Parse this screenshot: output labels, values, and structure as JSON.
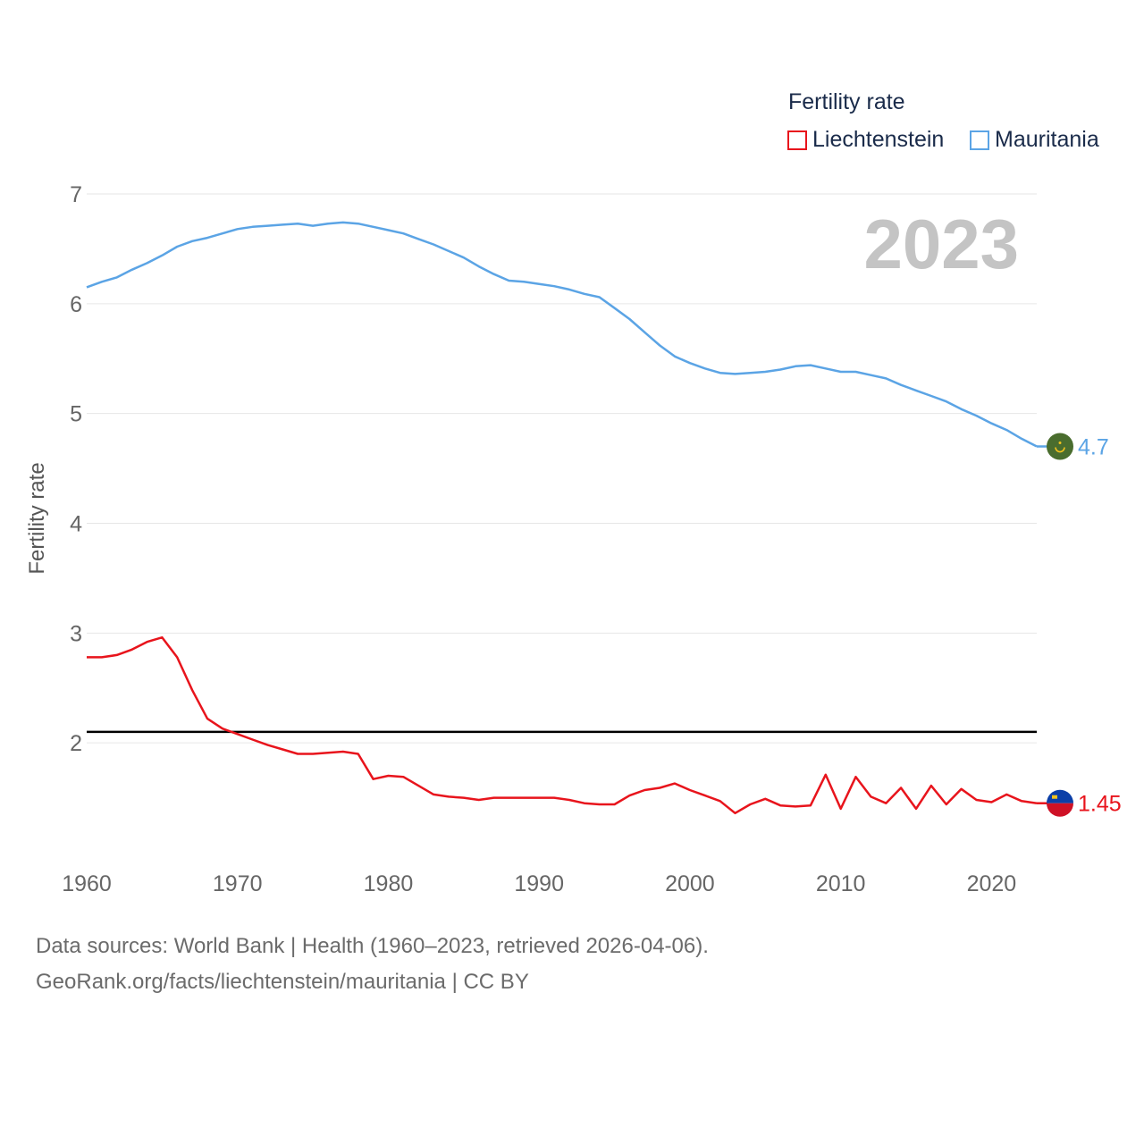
{
  "legend": {
    "title": "Fertility rate",
    "items": [
      {
        "name": "Liechtenstein",
        "color": "#e8141c"
      },
      {
        "name": "Mauritania",
        "color": "#5ba4e5"
      }
    ]
  },
  "year_watermark": "2023",
  "source": {
    "line1": "Data sources: World Bank | Health (1960–2023, retrieved 2026-04-06).",
    "line2": "GeoRank.org/facts/liechtenstein/mauritania | CC BY"
  },
  "chart_data": {
    "type": "line",
    "title": "Fertility rate",
    "xlabel": "",
    "ylabel": "Fertility rate",
    "xlim": [
      1960,
      2023
    ],
    "ylim": [
      1.0,
      7.0
    ],
    "xticks": [
      1960,
      1970,
      1980,
      1990,
      2000,
      2010,
      2020
    ],
    "yticks": [
      2,
      3,
      4,
      5,
      6,
      7
    ],
    "grid": true,
    "legend_position": "top-right",
    "reference_line": {
      "y": 2.1,
      "color": "#000000"
    },
    "x": [
      1960,
      1961,
      1962,
      1963,
      1964,
      1965,
      1966,
      1967,
      1968,
      1969,
      1970,
      1971,
      1972,
      1973,
      1974,
      1975,
      1976,
      1977,
      1978,
      1979,
      1980,
      1981,
      1982,
      1983,
      1984,
      1985,
      1986,
      1987,
      1988,
      1989,
      1990,
      1991,
      1992,
      1993,
      1994,
      1995,
      1996,
      1997,
      1998,
      1999,
      2000,
      2001,
      2002,
      2003,
      2004,
      2005,
      2006,
      2007,
      2008,
      2009,
      2010,
      2011,
      2012,
      2013,
      2014,
      2015,
      2016,
      2017,
      2018,
      2019,
      2020,
      2021,
      2022,
      2023
    ],
    "series": [
      {
        "name": "Liechtenstein",
        "color": "#e8141c",
        "end_label": "1.45",
        "values": [
          2.78,
          2.78,
          2.8,
          2.85,
          2.92,
          2.96,
          2.78,
          2.48,
          2.22,
          2.13,
          2.08,
          2.03,
          1.98,
          1.94,
          1.9,
          1.9,
          1.91,
          1.92,
          1.9,
          1.67,
          1.7,
          1.69,
          1.61,
          1.53,
          1.51,
          1.5,
          1.48,
          1.5,
          1.5,
          1.5,
          1.5,
          1.5,
          1.48,
          1.45,
          1.44,
          1.44,
          1.52,
          1.57,
          1.59,
          1.63,
          1.57,
          1.52,
          1.47,
          1.36,
          1.44,
          1.49,
          1.43,
          1.42,
          1.43,
          1.71,
          1.4,
          1.69,
          1.51,
          1.45,
          1.59,
          1.4,
          1.61,
          1.44,
          1.58,
          1.48,
          1.46,
          1.53,
          1.47,
          1.45
        ]
      },
      {
        "name": "Mauritania",
        "color": "#5ba4e5",
        "end_label": "4.7",
        "values": [
          6.15,
          6.2,
          6.24,
          6.31,
          6.37,
          6.44,
          6.52,
          6.57,
          6.6,
          6.64,
          6.68,
          6.7,
          6.71,
          6.72,
          6.73,
          6.71,
          6.73,
          6.74,
          6.73,
          6.7,
          6.67,
          6.64,
          6.59,
          6.54,
          6.48,
          6.42,
          6.34,
          6.27,
          6.21,
          6.2,
          6.18,
          6.16,
          6.13,
          6.09,
          6.06,
          5.96,
          5.86,
          5.74,
          5.62,
          5.52,
          5.46,
          5.41,
          5.37,
          5.36,
          5.37,
          5.38,
          5.4,
          5.43,
          5.44,
          5.41,
          5.38,
          5.38,
          5.35,
          5.32,
          5.26,
          5.21,
          5.16,
          5.11,
          5.04,
          4.98,
          4.91,
          4.85,
          4.77,
          4.7
        ]
      }
    ]
  }
}
